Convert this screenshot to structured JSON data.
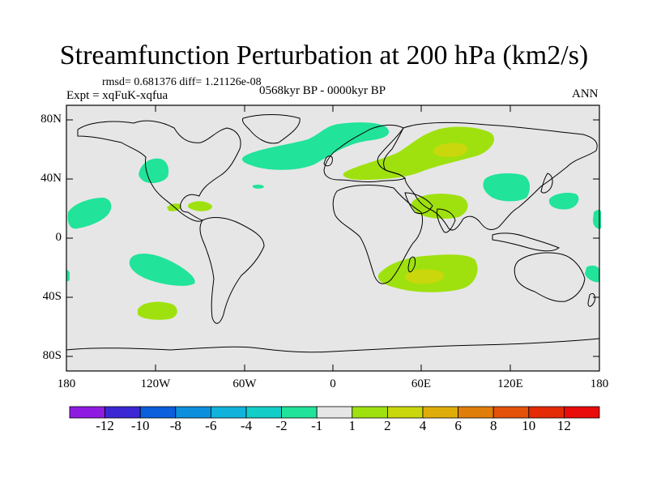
{
  "title": "Streamfunction Perturbation at 200 hPa (km2/s)",
  "stats": "rmsd= 0.681376 diff= 1.21126e-08",
  "experiment": "Expt = xqFuK-xqfua",
  "period": "0568kyr BP - 0000kyr BP",
  "season": "ANN",
  "y_ticks": [
    "80N",
    "40N",
    "0",
    "40S",
    "80S"
  ],
  "x_ticks": [
    "180",
    "120W",
    "60W",
    "0",
    "60E",
    "120E",
    "180"
  ],
  "colorbar": {
    "labels": [
      "-12",
      "-10",
      "-8",
      "-6",
      "-4",
      "-2",
      "-1",
      "1",
      "2",
      "4",
      "6",
      "8",
      "10",
      "12"
    ],
    "colors": [
      "#8f1be3",
      "#3b27d3",
      "#0b5fdd",
      "#0c90dd",
      "#11b3dc",
      "#13cdc9",
      "#21e39a",
      "#e6e6e6",
      "#9fe10f",
      "#cad70c",
      "#dfad09",
      "#e07e0a",
      "#e35208",
      "#e52a06",
      "#ea0b0b"
    ]
  },
  "colors": {
    "background": "#e6e6e6",
    "positive_low": "#9fe10f",
    "positive_mid": "#cad70c",
    "negative_low": "#21e39a"
  },
  "chart_data": {
    "type": "contour-map",
    "variable": "Streamfunction Perturbation",
    "level": "200 hPa",
    "units": "km2/s",
    "lon_range": [
      -180,
      180
    ],
    "lat_range": [
      -90,
      90
    ],
    "features": [
      {
        "name": "north-atlantic-negative",
        "value_class": "-2..-1",
        "lon": -20,
        "lat": 55
      },
      {
        "name": "north-pacific-negative",
        "value_class": "-2..-1",
        "lon": -130,
        "lat": 40
      },
      {
        "name": "central-pacific-negative",
        "value_class": "-2..-1",
        "lon": -170,
        "lat": 15
      },
      {
        "name": "south-pacific-negative",
        "value_class": "-2..-1",
        "lon": -125,
        "lat": -20
      },
      {
        "name": "east-asia-negative",
        "value_class": "-2..-1",
        "lon": 125,
        "lat": 40
      },
      {
        "name": "west-pacific-negative",
        "value_class": "-2..-1",
        "lon": 175,
        "lat": 15
      },
      {
        "name": "eurasia-positive",
        "value_class": "1..4",
        "lon": 60,
        "lat": 55
      },
      {
        "name": "middle-east-positive",
        "value_class": "1..2",
        "lon": 65,
        "lat": 25
      },
      {
        "name": "south-indian-positive",
        "value_class": "1..4",
        "lon": 60,
        "lat": -25
      },
      {
        "name": "south-pacific-positive",
        "value_class": "1..2",
        "lon": -120,
        "lat": -45
      }
    ]
  }
}
